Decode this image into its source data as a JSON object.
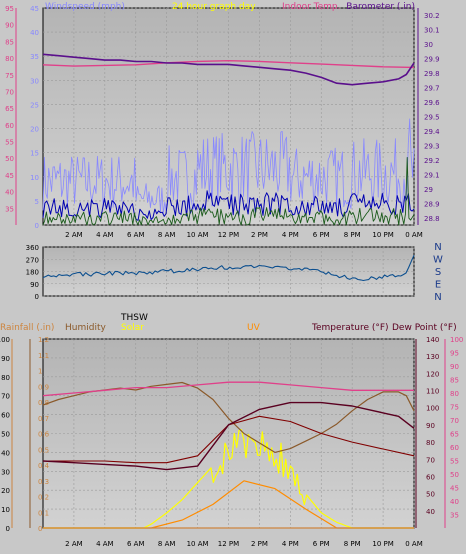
{
  "chart_data": [
    {
      "type": "line",
      "headers": {
        "windspeed": "Windspeed (mph)",
        "graph_title": "24 hour graph day",
        "center_overlay": "Indoor Temp.",
        "barometer": "Barometer (.in)"
      },
      "x_ticks": [
        "2 AM",
        "4 AM",
        "6 AM",
        "8 AM",
        "10 AM",
        "12 PM",
        "2 PM",
        "4 PM",
        "6 PM",
        "8 PM",
        "10 PM",
        "0 AM"
      ],
      "x_range": [
        0,
        24
      ],
      "left_axis": {
        "ticks": [
          0,
          5,
          10,
          15,
          20,
          25,
          30,
          35,
          40,
          45
        ],
        "range": [
          0,
          45
        ]
      },
      "far_left_axis": {
        "ticks": [
          35,
          40,
          45,
          50,
          55,
          60,
          65,
          70,
          75,
          80,
          85,
          90,
          95
        ],
        "range": [
          30,
          95
        ]
      },
      "right_axis": {
        "ticks": [
          "28.8",
          "28.9",
          "29",
          "29.1",
          "29.2",
          "29.3",
          "29.4",
          "29.5",
          "29.6",
          "29.7",
          "29.8",
          "29.9",
          "30",
          "30.1",
          "30.2"
        ],
        "range": [
          28.75,
          30.25
        ]
      },
      "series": [
        {
          "key": "barometer",
          "color": "#5a0f8c",
          "x": [
            0,
            1,
            2,
            3,
            4,
            5,
            6,
            7,
            8,
            9,
            10,
            11,
            12,
            13,
            14,
            15,
            16,
            17,
            18,
            19,
            20,
            21,
            22,
            23,
            23.5,
            24
          ],
          "y": [
            29.93,
            29.92,
            29.91,
            29.9,
            29.89,
            29.89,
            29.88,
            29.88,
            29.87,
            29.87,
            29.86,
            29.86,
            29.86,
            29.85,
            29.84,
            29.83,
            29.82,
            29.8,
            29.77,
            29.73,
            29.72,
            29.73,
            29.74,
            29.76,
            29.79,
            29.87
          ]
        },
        {
          "key": "indoor_temp",
          "color": "#e0408a",
          "x": [
            0,
            2,
            4,
            6,
            8,
            10,
            12,
            14,
            16,
            18,
            20,
            22,
            24
          ],
          "y": [
            78.0,
            77.6,
            77.8,
            78.0,
            78.6,
            79.0,
            79.2,
            79.0,
            78.6,
            78.2,
            77.8,
            77.4,
            77.2
          ]
        },
        {
          "key": "wind_gust",
          "color": "#8888ff",
          "x": [
            0,
            24
          ],
          "y": [
            8,
            8
          ]
        },
        {
          "key": "wind_avg",
          "color": "#0000b0",
          "x": [
            0,
            24
          ],
          "y": [
            3,
            3
          ]
        },
        {
          "key": "wind_low",
          "color": "#1a5a1a",
          "x": [
            0,
            24
          ],
          "y": [
            1,
            1
          ]
        }
      ]
    },
    {
      "type": "line",
      "x_range": [
        0,
        24
      ],
      "left_axis": {
        "ticks": [
          0,
          90,
          180,
          270,
          360
        ],
        "range": [
          0,
          360
        ]
      },
      "right_labels": [
        "N",
        "W",
        "S",
        "E",
        "N"
      ],
      "series": [
        {
          "key": "wind_direction",
          "color": "#0c4f8f",
          "x": [
            0,
            1,
            2,
            3,
            4,
            5,
            6,
            7,
            8,
            9,
            10,
            11,
            12,
            13,
            14,
            15,
            16,
            17,
            18,
            19,
            20,
            21,
            22,
            23,
            23.5,
            24
          ],
          "y": [
            150,
            155,
            160,
            158,
            165,
            168,
            170,
            175,
            180,
            190,
            200,
            205,
            210,
            215,
            212,
            205,
            200,
            195,
            180,
            150,
            125,
            130,
            140,
            150,
            170,
            300
          ]
        }
      ]
    },
    {
      "type": "line",
      "headers": {
        "rainfall": "Rainfall (.in)",
        "humidity": "Humidity",
        "thsw": "THSW",
        "solar": "Solar",
        "uv": "UV",
        "temperature": "Temperature (°F)",
        "dewpoint": "Dew Point (°F)"
      },
      "x_ticks": [
        "2 AM",
        "4 AM",
        "6 AM",
        "8 AM",
        "10 AM",
        "12 PM",
        "2 PM",
        "4 PM",
        "6 PM",
        "8 PM",
        "10 PM",
        "0 AM"
      ],
      "x_range": [
        0,
        24
      ],
      "rain_axis": {
        "ticks": [
          "0",
          "0.1",
          "0.2",
          "0.3",
          "0.4",
          "0.5",
          "0.6",
          "0.7",
          "0.8",
          "0.9",
          "1",
          "1.1",
          "1.2"
        ],
        "range": [
          0,
          1.2
        ]
      },
      "humidity_axis": {
        "ticks": [
          0,
          10,
          20,
          30,
          40,
          50,
          60,
          70,
          80,
          90,
          100
        ],
        "range": [
          0,
          100
        ]
      },
      "temp_axis": {
        "ticks": [
          40,
          50,
          60,
          70,
          80,
          90,
          100,
          110,
          120,
          130,
          140
        ],
        "range": [
          30,
          140
        ]
      },
      "dew_axis": {
        "ticks": [
          35,
          40,
          45,
          50,
          55,
          60,
          65,
          70,
          75,
          80,
          85,
          90,
          95,
          100
        ],
        "range": [
          30,
          100
        ]
      },
      "series": [
        {
          "key": "humidity",
          "color": "#8b5a2b",
          "x": [
            0,
            1,
            2,
            3,
            4,
            5,
            6,
            7,
            8,
            9,
            10,
            11,
            12,
            13,
            14,
            15,
            16,
            17,
            18,
            19,
            20,
            21,
            22,
            23,
            23.5,
            24
          ],
          "y": [
            65,
            68,
            70,
            72,
            73,
            74,
            73,
            75,
            76,
            77,
            74,
            68,
            58,
            50,
            45,
            40,
            42,
            46,
            50,
            55,
            62,
            68,
            72,
            72,
            70,
            62
          ]
        },
        {
          "key": "temperature",
          "color": "#5a0020",
          "x": [
            0,
            2,
            4,
            6,
            8,
            10,
            12,
            14,
            16,
            18,
            19,
            20,
            21,
            22,
            23,
            24
          ],
          "y": [
            69,
            68,
            67,
            66,
            64,
            66,
            90,
            99,
            103,
            103,
            102,
            101,
            99,
            97,
            95,
            88
          ]
        },
        {
          "key": "dewpoint",
          "color": "#e0408a",
          "x": [
            0,
            2,
            4,
            6,
            8,
            10,
            12,
            14,
            16,
            18,
            20,
            22,
            24
          ],
          "y": [
            79,
            80,
            81,
            82,
            82,
            83,
            84,
            84,
            83,
            82,
            81,
            81,
            81
          ]
        },
        {
          "key": "thsw",
          "color": "#800000",
          "x": [
            0,
            2,
            4,
            6,
            8,
            10,
            12,
            14,
            16,
            18,
            20,
            22,
            24
          ],
          "y": [
            69,
            69,
            69,
            68,
            68,
            72,
            90,
            95,
            92,
            85,
            80,
            76,
            72
          ]
        },
        {
          "key": "solar",
          "color": "#ffff00",
          "x": [
            0,
            6.5,
            7,
            8,
            9,
            10,
            11,
            12,
            13,
            14,
            15,
            16,
            17,
            18,
            19,
            20,
            20.5,
            24
          ],
          "y": [
            0,
            0,
            2,
            8,
            15,
            24,
            33,
            40,
            44,
            45,
            40,
            30,
            18,
            8,
            3,
            0,
            0,
            0
          ]
        },
        {
          "key": "uv",
          "color": "#ff8c00",
          "x": [
            0,
            7,
            9,
            11,
            13,
            15,
            17,
            19,
            24
          ],
          "y": [
            0,
            0,
            0.05,
            0.15,
            0.3,
            0.25,
            0.12,
            0,
            0
          ]
        },
        {
          "key": "rainfall",
          "color": "#cd853f",
          "x": [
            0,
            24
          ],
          "y": [
            0,
            0
          ]
        }
      ]
    }
  ]
}
